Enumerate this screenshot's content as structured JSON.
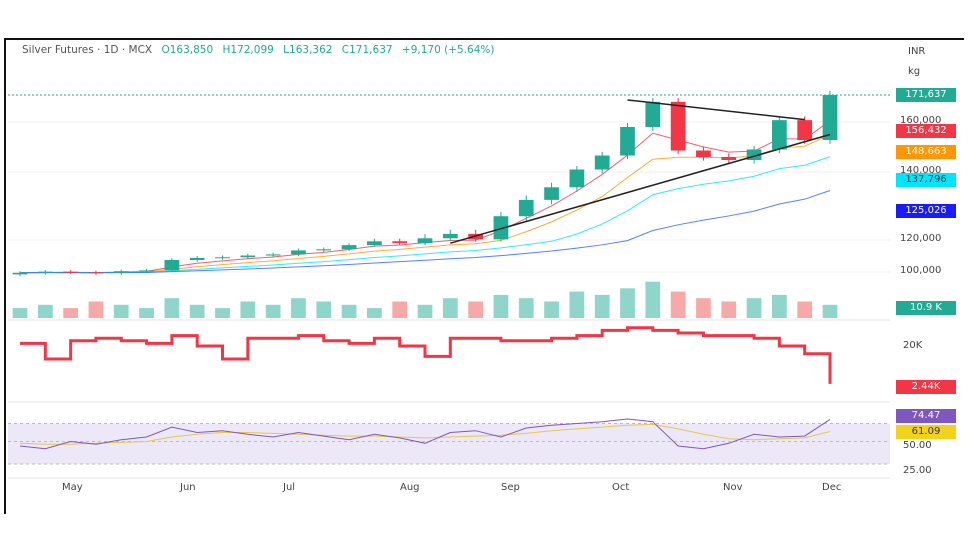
{
  "header": {
    "symbol": "Silver Futures · 1D · MCX",
    "open": "O163,850",
    "high": "H172,099",
    "low": "L163,362",
    "close": "C171,637",
    "change": "+9,170 (+5.64%)"
  },
  "axis": {
    "currency": "INR",
    "unit": "kg"
  },
  "chart_data": [
    {
      "type": "candlestick",
      "title": "Silver Futures · 1D · MCX",
      "x_ticks": [
        "May",
        "Jun",
        "Jul",
        "Aug",
        "Sep",
        "Oct",
        "Nov",
        "Dec"
      ],
      "y_ticks": [
        "100,000",
        "120,000",
        "140,000",
        "160,000"
      ],
      "closes": [
        99500,
        100200,
        99800,
        99300,
        100500,
        101000,
        107500,
        108800,
        109200,
        110300,
        111000,
        113500,
        114200,
        116800,
        119200,
        118000,
        120500,
        121800,
        120200,
        127000,
        131800,
        135500,
        141000,
        146600,
        158000,
        168700,
        148600,
        146000,
        144800,
        149000,
        160800,
        152800,
        171637
      ],
      "price_label": "171,637",
      "moving_averages": [
        {
          "value_label": "156,432",
          "color": "#f23645",
          "span": 4
        },
        {
          "value_label": "148,663",
          "color": "#ff9800",
          "span": 8
        },
        {
          "value_label": "137,796",
          "color": "#00e5ff",
          "span": 16
        },
        {
          "value_label": "125,026",
          "color": "#2962ff",
          "span": 30
        }
      ],
      "trendlines": [
        {
          "from": [
            18,
            118000
          ],
          "to": [
            33,
            155000
          ]
        },
        {
          "from": [
            25,
            169500
          ],
          "to": [
            32,
            161000
          ]
        }
      ],
      "colors": {
        "up": "#22ab94",
        "down": "#f23645"
      }
    },
    {
      "type": "bar",
      "name_label": "10.9 K",
      "volume": [
        3,
        4,
        3,
        5,
        4,
        3,
        6,
        4,
        3,
        5,
        4,
        6,
        5,
        4,
        3,
        5,
        4,
        6,
        5,
        7,
        6,
        5,
        8,
        7,
        9,
        11,
        8,
        6,
        5,
        6,
        7,
        5,
        4
      ]
    },
    {
      "type": "line",
      "y_ticks": [
        "20K"
      ],
      "value_label": "2.44K",
      "values": [
        18,
        12,
        19,
        20,
        19,
        18,
        21,
        17,
        12,
        20,
        20,
        21,
        19,
        18,
        20,
        17,
        13,
        20,
        20,
        19,
        19,
        20,
        21,
        23,
        24,
        23,
        22,
        21,
        21,
        20,
        17,
        14,
        2.44
      ]
    },
    {
      "type": "line",
      "y_ticks": [
        "50.00",
        "25.00"
      ],
      "rsi_label": "74.47",
      "rsi_ma_label": "61.09",
      "rsi": [
        45,
        42,
        50,
        47,
        52,
        55,
        66,
        60,
        62,
        58,
        55,
        60,
        56,
        52,
        58,
        54,
        48,
        60,
        62,
        55,
        65,
        68,
        70,
        72,
        75,
        72,
        45,
        42,
        48,
        58,
        55,
        56,
        74.47
      ],
      "rsi_ma": [
        48,
        47,
        47,
        48,
        49,
        50,
        55,
        58,
        60,
        60,
        59,
        58,
        57,
        56,
        56,
        55,
        54,
        55,
        56,
        57,
        59,
        62,
        64,
        66,
        68,
        69,
        64,
        58,
        53,
        52,
        53,
        54,
        61.09
      ]
    }
  ]
}
